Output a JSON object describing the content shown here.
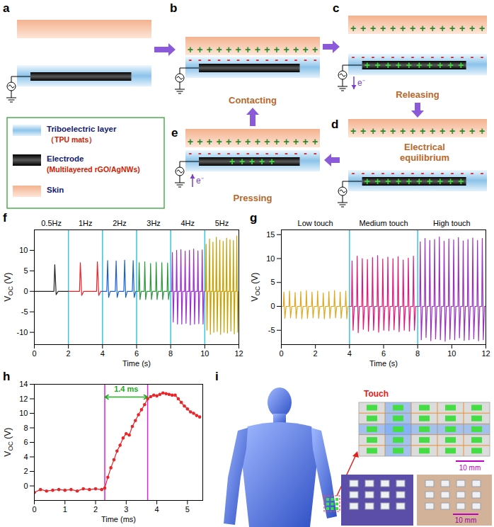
{
  "diagram": {
    "panels": [
      {
        "letter": "a"
      },
      {
        "letter": "b",
        "label": "Contacting"
      },
      {
        "letter": "c",
        "label": "Releasing",
        "current": "e⁻"
      },
      {
        "letter": "d",
        "label": "Electrical equilibrium"
      },
      {
        "letter": "e",
        "label": "Pressing",
        "current": "e⁻"
      }
    ],
    "charges": {
      "positive": "+",
      "negative": "-"
    },
    "legend": [
      {
        "label": "Triboelectric layer",
        "sublabel": "（TPU mats）"
      },
      {
        "label": "Electrode",
        "sublabel": "(Multilayered rGO/AgNWs)"
      },
      {
        "label": "Skin"
      }
    ]
  },
  "chart_data": [
    {
      "type": "line",
      "panel": "f",
      "xlabel": "Time (s)",
      "ylabel": {
        "text": "V",
        "subscript": "OC",
        "suffix": "(V)"
      },
      "xlim": [
        0,
        12
      ],
      "xticks": [
        0,
        2,
        4,
        6,
        8,
        10,
        12
      ],
      "ylim": [
        -13,
        15
      ],
      "yticks": [
        -10,
        -5,
        0,
        5,
        10
      ],
      "dividers": [
        2,
        4,
        6,
        8,
        10
      ],
      "series": [
        {
          "name": "0.5Hz",
          "color": "#222222",
          "x": [
            0,
            1.15,
            1.2,
            1.28,
            1.4,
            2
          ],
          "values": [
            0,
            0,
            6.5,
            -0.8,
            0,
            0
          ]
        },
        {
          "name": "1Hz",
          "color": "#e8242a",
          "x": [
            2,
            2.65,
            2.7,
            2.78,
            2.9,
            3.65,
            3.7,
            3.78,
            3.9,
            4
          ],
          "values": [
            0,
            0,
            7,
            -1,
            0,
            0,
            7.2,
            -1,
            0,
            0
          ]
        },
        {
          "name": "2Hz",
          "color": "#1a5fd0",
          "x": [
            4,
            4.25,
            4.3,
            4.36,
            4.45,
            4.75,
            4.8,
            4.86,
            4.95,
            5.25,
            5.3,
            5.36,
            5.45,
            5.75,
            5.8,
            5.86,
            5.95,
            6
          ],
          "values": [
            0,
            0,
            7.5,
            -1.5,
            0,
            0,
            7.4,
            -1.5,
            0,
            0,
            7.6,
            -1.5,
            0,
            0,
            7.5,
            -1.5,
            0,
            0
          ]
        },
        {
          "name": "3Hz",
          "color": "#2a9a3a",
          "x": [
            6,
            6.12,
            6.15,
            6.2,
            6.27,
            6.45,
            6.48,
            6.53,
            6.6,
            6.79,
            6.82,
            6.87,
            6.94,
            7.12,
            7.15,
            7.2,
            7.27,
            7.45,
            7.48,
            7.53,
            7.6,
            7.79,
            7.82,
            7.87,
            7.94,
            8
          ],
          "values": [
            0,
            0,
            7,
            -2,
            0,
            0,
            7.2,
            -2,
            0,
            0,
            6.8,
            -2,
            0,
            0,
            7.1,
            -2,
            0,
            0,
            7,
            -2,
            0,
            0,
            6.9,
            -2,
            0,
            0
          ]
        },
        {
          "name": "4Hz",
          "color": "#9b30d0",
          "x": [
            8,
            8.07,
            8.1,
            8.15,
            8.2,
            8.32,
            8.35,
            8.4,
            8.45,
            8.57,
            8.6,
            8.65,
            8.7,
            8.82,
            8.85,
            8.9,
            8.95,
            9.07,
            9.1,
            9.15,
            9.2,
            9.32,
            9.35,
            9.4,
            9.45,
            9.57,
            9.6,
            9.65,
            9.7,
            9.82,
            9.85,
            9.9,
            9.95,
            10
          ],
          "values": [
            0,
            0,
            9.5,
            -7.5,
            0,
            0,
            10,
            -8,
            0,
            0,
            10.2,
            -8,
            0,
            0,
            9.8,
            -7.8,
            0,
            0,
            10,
            -8.2,
            0,
            0,
            10.3,
            -8,
            0,
            0,
            9.9,
            -7.9,
            0,
            0,
            10.1,
            -8,
            0,
            0
          ]
        },
        {
          "name": "5Hz",
          "color": "#c8a000",
          "x": [
            10,
            10.05,
            10.08,
            10.13,
            10.17,
            10.25,
            10.28,
            10.33,
            10.37,
            10.45,
            10.48,
            10.53,
            10.57,
            10.65,
            10.68,
            10.73,
            10.77,
            10.85,
            10.88,
            10.93,
            10.97,
            11.05,
            11.08,
            11.13,
            11.17,
            11.25,
            11.28,
            11.33,
            11.37,
            11.45,
            11.48,
            11.53,
            11.57,
            11.65,
            11.68,
            11.73,
            11.77,
            11.85,
            11.88,
            11.93,
            11.97,
            12
          ],
          "values": [
            0,
            0,
            11.5,
            -9.5,
            0,
            0,
            12.8,
            -10.5,
            0,
            0,
            12,
            -10,
            0,
            0,
            13.2,
            -9.8,
            0,
            0,
            12.5,
            -10.5,
            0,
            0,
            12.2,
            -10,
            0,
            0,
            13,
            -10.2,
            0,
            0,
            12.6,
            -9.7,
            0,
            0,
            12.4,
            -10.4,
            0,
            0,
            13.5,
            -10,
            0,
            0
          ]
        }
      ]
    },
    {
      "type": "line",
      "panel": "g",
      "xlabel": "Time (s)",
      "ylabel": {
        "text": "V",
        "subscript": "OC",
        "suffix": "(V)"
      },
      "xlim": [
        0,
        12
      ],
      "xticks": [
        0,
        2,
        4,
        6,
        8,
        10,
        12
      ],
      "ylim": [
        -8,
        16
      ],
      "yticks": [
        -5,
        0,
        5,
        10,
        15
      ],
      "dividers": [
        4,
        8
      ],
      "series": [
        {
          "name": "Low touch",
          "color": "#e0a820",
          "x": [
            0,
            0.12,
            0.15,
            0.21,
            0.28,
            0.45,
            0.48,
            0.54,
            0.61,
            0.78,
            0.81,
            0.87,
            0.94,
            1.11,
            1.14,
            1.2,
            1.27,
            1.44,
            1.47,
            1.53,
            1.6,
            1.77,
            1.8,
            1.86,
            1.93,
            2.1,
            2.13,
            2.19,
            2.26,
            2.43,
            2.46,
            2.52,
            2.59,
            2.76,
            2.79,
            2.85,
            2.92,
            3.09,
            3.12,
            3.18,
            3.25,
            3.42,
            3.45,
            3.51,
            3.58,
            3.75,
            3.78,
            3.84,
            3.91,
            4
          ],
          "values": [
            0,
            0,
            3,
            -2.5,
            0,
            0,
            3.2,
            -2.4,
            0,
            0,
            2.9,
            -2.5,
            0,
            0,
            3.1,
            -2.6,
            0,
            0,
            3.3,
            -2.5,
            0,
            0,
            3,
            -2.4,
            0,
            0,
            3.2,
            -2.5,
            0,
            0,
            2.8,
            -2.6,
            0,
            0,
            3.1,
            -2.5,
            0,
            0,
            3.3,
            -2.4,
            0,
            0,
            3,
            -2.5,
            0,
            0,
            3.2,
            -2.6,
            0,
            0
          ]
        },
        {
          "name": "Medium touch",
          "color": "#e0187a",
          "x": [
            4,
            4.12,
            4.15,
            4.21,
            4.28,
            4.42,
            4.45,
            4.51,
            4.58,
            4.72,
            4.75,
            4.81,
            4.88,
            5.02,
            5.05,
            5.11,
            5.18,
            5.32,
            5.35,
            5.41,
            5.48,
            5.62,
            5.65,
            5.71,
            5.78,
            5.92,
            5.95,
            6.01,
            6.08,
            6.22,
            6.25,
            6.31,
            6.38,
            6.52,
            6.55,
            6.61,
            6.68,
            6.82,
            6.85,
            6.91,
            6.98,
            7.12,
            7.15,
            7.21,
            7.28,
            7.42,
            7.45,
            7.51,
            7.58,
            7.72,
            7.75,
            7.81,
            7.88,
            8
          ],
          "values": [
            0,
            0,
            9.5,
            -5,
            0,
            0,
            10.5,
            -5.5,
            0,
            0,
            10,
            -4.8,
            0,
            0,
            9.8,
            -5.2,
            0,
            0,
            10.2,
            -5,
            0,
            0,
            10.6,
            -5.4,
            0,
            0,
            9.9,
            -5,
            0,
            0,
            10.3,
            -5.1,
            0,
            0,
            10,
            -4.9,
            0,
            0,
            10.4,
            -5.3,
            0,
            0,
            9.7,
            -5,
            0,
            0,
            10.1,
            -5.2,
            0,
            0,
            10.5,
            -5,
            0,
            0
          ]
        },
        {
          "name": "High touch",
          "color": "#9a30c0",
          "x": [
            8,
            8.12,
            8.15,
            8.21,
            8.28,
            8.4,
            8.43,
            8.49,
            8.56,
            8.68,
            8.71,
            8.77,
            8.84,
            8.96,
            8.99,
            9.05,
            9.12,
            9.24,
            9.27,
            9.33,
            9.4,
            9.52,
            9.55,
            9.61,
            9.68,
            9.8,
            9.83,
            9.89,
            9.96,
            10.08,
            10.11,
            10.17,
            10.24,
            10.36,
            10.39,
            10.45,
            10.52,
            10.64,
            10.67,
            10.73,
            10.8,
            10.92,
            10.95,
            11.01,
            11.08,
            11.2,
            11.23,
            11.29,
            11.36,
            11.48,
            11.51,
            11.57,
            11.64,
            11.76,
            11.79,
            11.85,
            11.92,
            12
          ],
          "values": [
            0,
            0,
            13.5,
            -7,
            0,
            0,
            14.2,
            -6.5,
            0,
            0,
            13.8,
            -7.2,
            0,
            0,
            14,
            -6.8,
            0,
            0,
            14.5,
            -7,
            0,
            0,
            13.6,
            -7.3,
            0,
            0,
            14.1,
            -6.9,
            0,
            0,
            13.9,
            -7,
            0,
            0,
            14.4,
            -6.6,
            0,
            0,
            13.7,
            -7.1,
            0,
            0,
            14,
            -7,
            0,
            0,
            14.3,
            -6.8,
            0,
            0,
            13.8,
            -7.2,
            0,
            0,
            14.2,
            -7,
            0,
            0
          ]
        }
      ]
    },
    {
      "type": "line",
      "panel": "h",
      "xlabel": "Time (ms)",
      "marker": "circle",
      "ylabel": {
        "text": "V",
        "subscript": "OC",
        "suffix": "(V)"
      },
      "xlim": [
        0,
        5.5
      ],
      "xticks": [
        0,
        1,
        2,
        3,
        4,
        5
      ],
      "ylim": [
        -2,
        14
      ],
      "yticks": [
        0,
        2,
        4,
        6,
        8,
        10,
        12,
        14
      ],
      "annotations": [
        {
          "text": "1.4 ms",
          "x": [
            2.3,
            3.7
          ],
          "color": "#22aa22"
        }
      ],
      "series": [
        {
          "color": "#e8262a",
          "x": [
            0,
            0.2,
            0.4,
            0.6,
            0.8,
            1.0,
            1.2,
            1.4,
            1.6,
            1.8,
            2.0,
            2.2,
            2.3,
            2.4,
            2.5,
            2.6,
            2.7,
            2.8,
            2.9,
            3.0,
            3.1,
            3.2,
            3.3,
            3.4,
            3.5,
            3.6,
            3.7,
            3.8,
            3.9,
            4.0,
            4.1,
            4.2,
            4.3,
            4.4,
            4.5,
            4.6,
            4.7,
            4.8,
            4.9,
            5.0,
            5.1,
            5.2,
            5.3,
            5.4
          ],
          "values": [
            -0.9,
            -0.5,
            -0.7,
            -0.6,
            -0.5,
            -0.6,
            -0.5,
            -0.7,
            -0.4,
            -0.5,
            -0.4,
            -0.5,
            -0.3,
            1.2,
            2.5,
            3.6,
            4.8,
            5.6,
            6.6,
            7.2,
            7.0,
            8.2,
            9.0,
            9.8,
            10.5,
            11.2,
            12.0,
            12.3,
            12.5,
            12.4,
            12.6,
            12.8,
            12.7,
            12.6,
            12.5,
            12.5,
            12.0,
            11.5,
            11.0,
            10.6,
            10.2,
            10.0,
            9.7,
            9.5
          ]
        }
      ]
    }
  ],
  "illustration": {
    "letter": "i",
    "touch": "Touch",
    "scale_bars": [
      "10 mm",
      "10 mm"
    ]
  }
}
